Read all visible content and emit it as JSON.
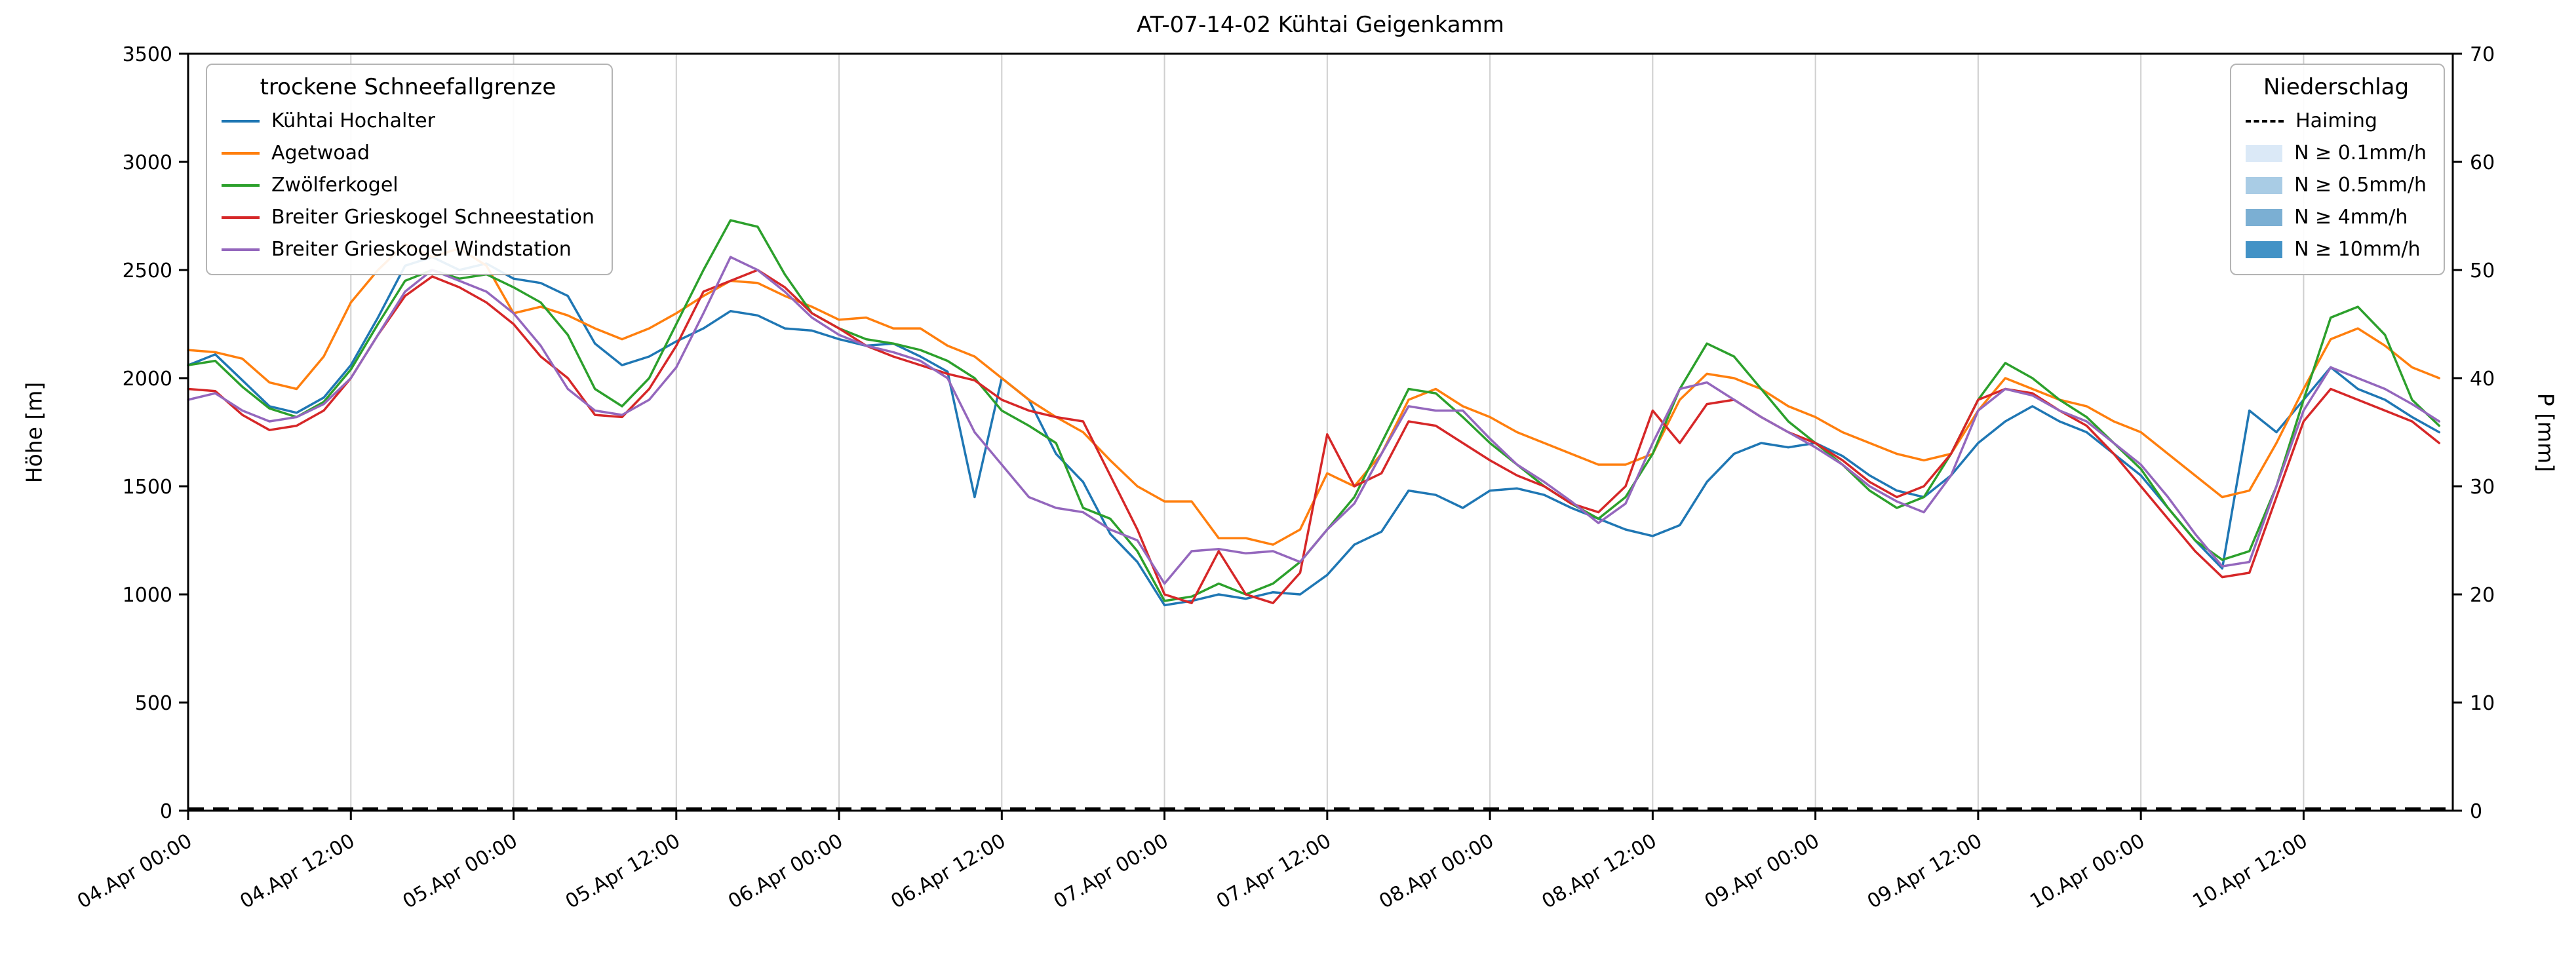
{
  "chart_data": {
    "type": "line",
    "title": "AT-07-14-02 Kühtai Geigenkamm",
    "legend_title": "trockene Schneefallgrenze",
    "grid": {
      "axis": "x",
      "color": "#cfcfcf"
    },
    "x_step_hours": 2,
    "xlim": [
      0,
      167
    ],
    "x_ticks_hours": [
      0,
      12,
      24,
      36,
      48,
      60,
      72,
      84,
      96,
      108,
      120,
      132,
      144,
      156
    ],
    "x_tick_labels": [
      "04.Apr 00:00",
      "04.Apr 12:00",
      "05.Apr 00:00",
      "05.Apr 12:00",
      "06.Apr 00:00",
      "06.Apr 12:00",
      "07.Apr 00:00",
      "07.Apr 12:00",
      "08.Apr 00:00",
      "08.Apr 12:00",
      "09.Apr 00:00",
      "09.Apr 12:00",
      "10.Apr 00:00",
      "10.Apr 12:00"
    ],
    "left_axis": {
      "label": "Höhe [m]",
      "lim": [
        0,
        3500
      ],
      "ticks": [
        0,
        500,
        1000,
        1500,
        2000,
        2500,
        3000,
        3500
      ]
    },
    "right_axis": {
      "label": "P [mm]",
      "lim": [
        0,
        70
      ],
      "ticks": [
        0,
        10,
        20,
        30,
        40,
        50,
        60,
        70
      ]
    },
    "series": [
      {
        "name": "Kühtai Hochalter",
        "color": "#1f77b4",
        "values": [
          2060,
          2110,
          1990,
          1870,
          1840,
          1910,
          2060,
          2280,
          2520,
          2560,
          2500,
          2530,
          2460,
          2440,
          2380,
          2160,
          2060,
          2100,
          2170,
          2230,
          2310,
          2290,
          2230,
          2220,
          2180,
          2150,
          2160,
          2100,
          2030,
          1450,
          2000,
          1900,
          1650,
          1520,
          1280,
          1150,
          950,
          970,
          1000,
          980,
          1010,
          1000,
          1090,
          1230,
          1290,
          1480,
          1460,
          1400,
          1480,
          1490,
          1460,
          1400,
          1350,
          1300,
          1270,
          1320,
          1520,
          1650,
          1700,
          1680,
          1700,
          1640,
          1550,
          1480,
          1450,
          1550,
          1700,
          1800,
          1870,
          1800,
          1750,
          1650,
          1550,
          1400,
          1250,
          1120,
          1850,
          1750,
          1900,
          2050,
          1950,
          1900,
          1820,
          1750
        ]
      },
      {
        "name": "Agetwoad",
        "color": "#ff7f0e",
        "values": [
          2130,
          2120,
          2090,
          1980,
          1950,
          2100,
          2350,
          2500,
          2620,
          2560,
          2600,
          2520,
          2300,
          2330,
          2290,
          2230,
          2180,
          2230,
          2300,
          2380,
          2450,
          2440,
          2380,
          2330,
          2270,
          2280,
          2230,
          2230,
          2150,
          2100,
          2000,
          1900,
          1820,
          1750,
          1620,
          1500,
          1430,
          1430,
          1260,
          1260,
          1230,
          1300,
          1560,
          1500,
          1650,
          1900,
          1950,
          1870,
          1820,
          1750,
          1700,
          1650,
          1600,
          1600,
          1650,
          1900,
          2020,
          2000,
          1950,
          1870,
          1820,
          1750,
          1700,
          1650,
          1620,
          1650,
          1850,
          2000,
          1950,
          1900,
          1870,
          1800,
          1750,
          1650,
          1550,
          1450,
          1480,
          1700,
          1950,
          2180,
          2230,
          2150,
          2050,
          2000
        ]
      },
      {
        "name": "Zwölferkogel",
        "color": "#2ca02c",
        "values": [
          2060,
          2080,
          1960,
          1860,
          1820,
          1890,
          2040,
          2250,
          2450,
          2500,
          2460,
          2480,
          2420,
          2350,
          2200,
          1950,
          1870,
          2000,
          2250,
          2500,
          2730,
          2700,
          2480,
          2300,
          2230,
          2180,
          2160,
          2130,
          2080,
          2000,
          1850,
          1780,
          1700,
          1400,
          1350,
          1200,
          970,
          990,
          1050,
          1000,
          1050,
          1150,
          1300,
          1450,
          1700,
          1950,
          1930,
          1820,
          1700,
          1600,
          1500,
          1420,
          1350,
          1450,
          1650,
          1950,
          2160,
          2100,
          1950,
          1800,
          1700,
          1600,
          1480,
          1400,
          1450,
          1650,
          1900,
          2070,
          2000,
          1900,
          1820,
          1700,
          1580,
          1400,
          1250,
          1160,
          1200,
          1500,
          1900,
          2280,
          2330,
          2200,
          1900,
          1780
        ]
      },
      {
        "name": "Breiter Grieskogel Schneestation",
        "color": "#d62728",
        "values": [
          1950,
          1940,
          1830,
          1760,
          1780,
          1850,
          2000,
          2200,
          2380,
          2470,
          2420,
          2350,
          2250,
          2100,
          2000,
          1830,
          1820,
          1950,
          2150,
          2400,
          2450,
          2500,
          2420,
          2300,
          2230,
          2150,
          2100,
          2060,
          2020,
          1990,
          1900,
          1850,
          1820,
          1800,
          1550,
          1300,
          1000,
          960,
          1200,
          1000,
          960,
          1100,
          1740,
          1500,
          1560,
          1800,
          1780,
          1700,
          1620,
          1550,
          1500,
          1420,
          1380,
          1500,
          1850,
          1700,
          1880,
          1900,
          1820,
          1750,
          1700,
          1620,
          1520,
          1450,
          1500,
          1650,
          1900,
          1950,
          1930,
          1850,
          1780,
          1650,
          1500,
          1350,
          1200,
          1080,
          1100,
          1450,
          1800,
          1950,
          1900,
          1850,
          1800,
          1700
        ]
      },
      {
        "name": "Breiter Grieskogel Windstation",
        "color": "#9467bd",
        "values": [
          1900,
          1930,
          1850,
          1800,
          1820,
          1880,
          2000,
          2200,
          2400,
          2500,
          2450,
          2400,
          2300,
          2150,
          1950,
          1850,
          1830,
          1900,
          2050,
          2300,
          2560,
          2500,
          2400,
          2280,
          2200,
          2150,
          2120,
          2080,
          2000,
          1750,
          1600,
          1450,
          1400,
          1380,
          1300,
          1250,
          1050,
          1200,
          1210,
          1190,
          1200,
          1150,
          1300,
          1420,
          1650,
          1870,
          1850,
          1850,
          1720,
          1600,
          1520,
          1430,
          1330,
          1420,
          1700,
          1950,
          1980,
          1900,
          1820,
          1750,
          1680,
          1600,
          1500,
          1430,
          1380,
          1550,
          1850,
          1950,
          1920,
          1850,
          1800,
          1700,
          1600,
          1450,
          1280,
          1130,
          1150,
          1500,
          1850,
          2050,
          2000,
          1950,
          1880,
          1800
        ]
      }
    ],
    "precip": {
      "legend_title": "Niederschlag",
      "haiming": {
        "name": "Haiming",
        "color": "#000000",
        "style": "dashed",
        "value_mm": 0
      },
      "classes": [
        {
          "label": "N ≥ 0.1mm/h",
          "color": "#dbe9f7"
        },
        {
          "label": "N ≥ 0.5mm/h",
          "color": "#a9cce5"
        },
        {
          "label": "N ≥ 4mm/h",
          "color": "#7bafd3"
        },
        {
          "label": "N ≥ 10mm/h",
          "color": "#4292c6"
        }
      ]
    }
  }
}
